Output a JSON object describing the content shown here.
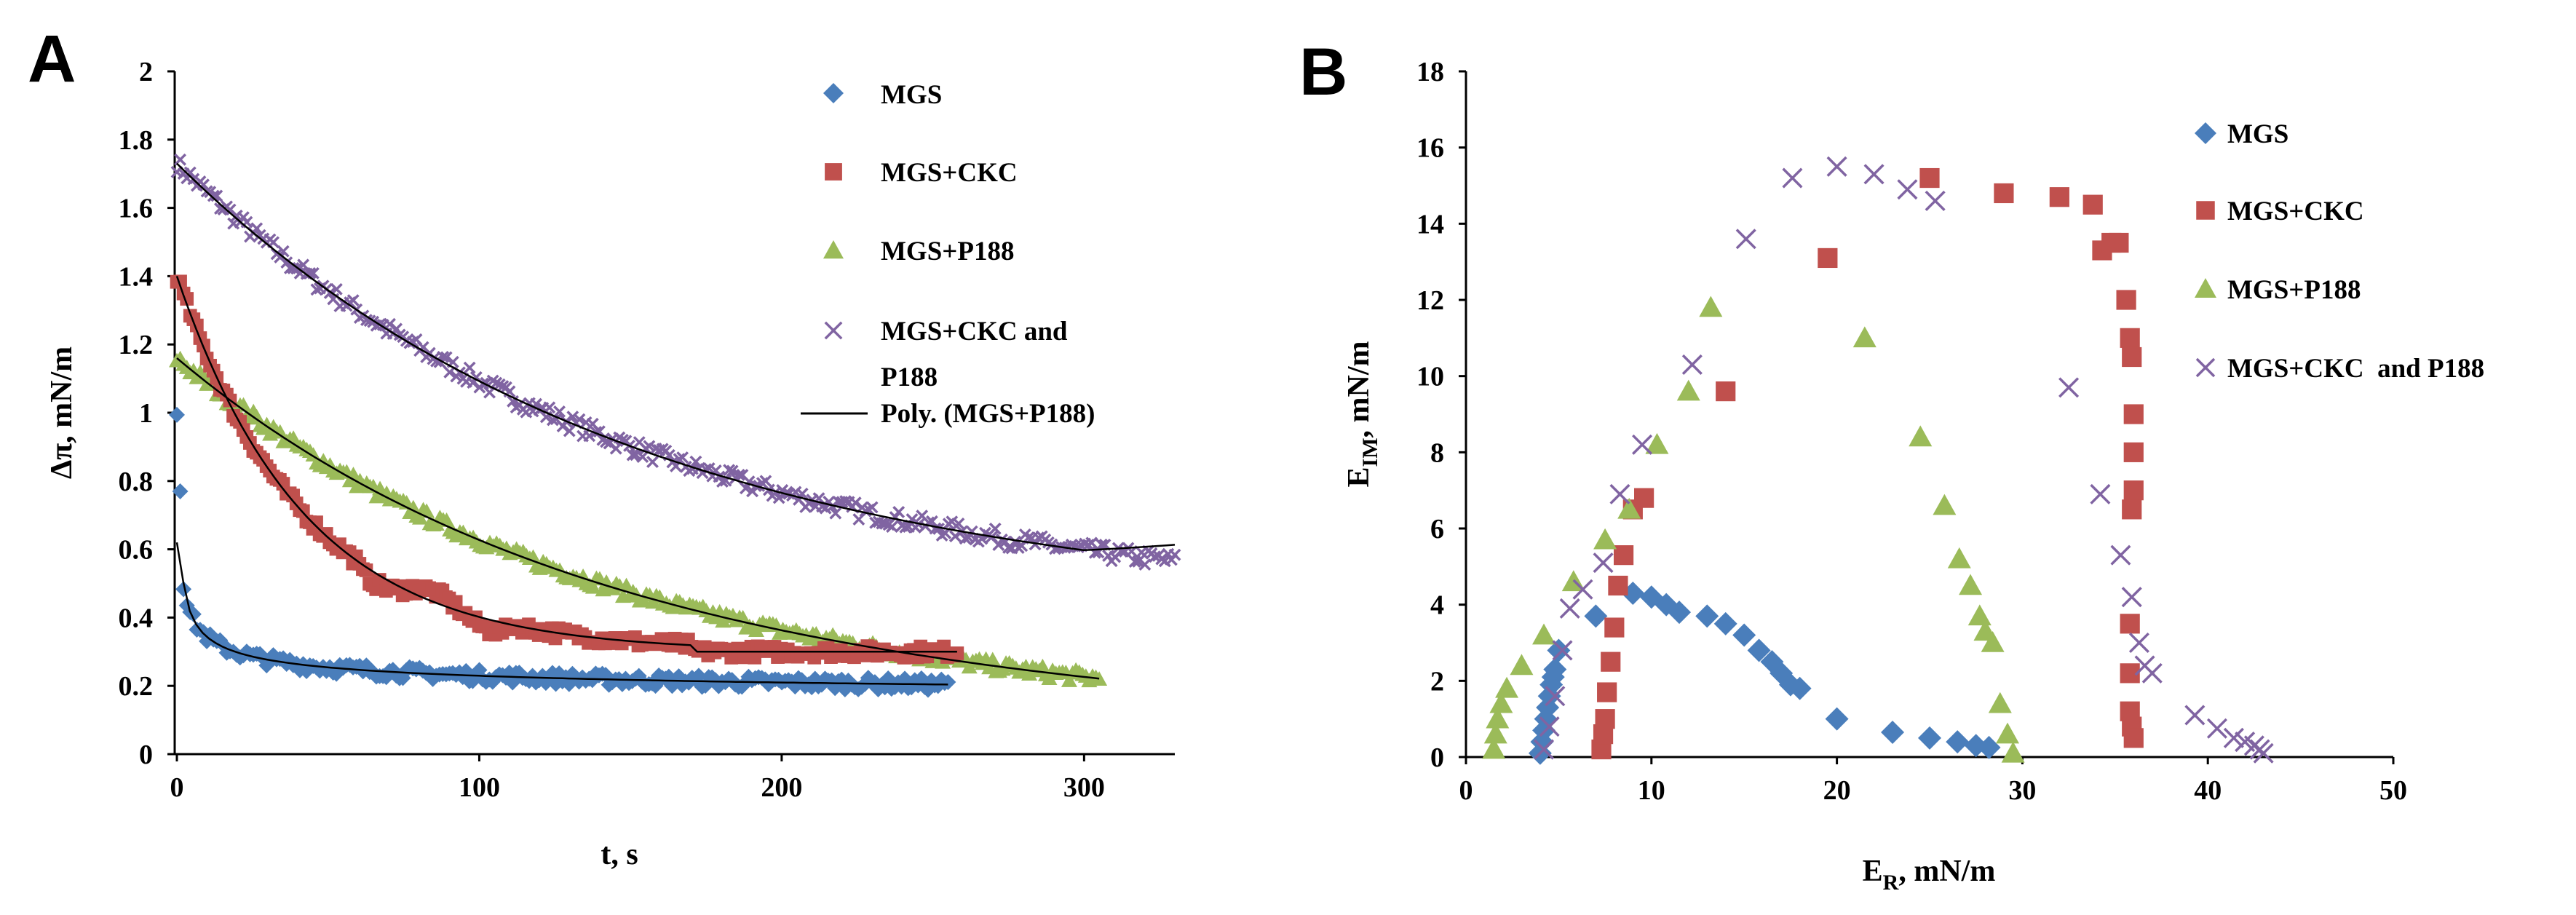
{
  "chart_data": [
    {
      "panel_label": "A",
      "type": "scatter",
      "xlabel": "t, s",
      "ylabel": "Δπ, mN/m",
      "xlim": [
        0,
        330
      ],
      "ylim": [
        0,
        2
      ],
      "xticks": [
        "0",
        "100",
        "200",
        "300"
      ],
      "yticks": [
        "0",
        "0.2",
        "0.4",
        "0.6",
        "0.8",
        "1",
        "1.2",
        "1.4",
        "1.6",
        "1.8",
        "2"
      ],
      "grid": false,
      "legend_position": "top-right",
      "series": [
        {
          "name": "MGS",
          "marker": "diamond",
          "color": "#4a7ebb",
          "model": {
            "form": "log",
            "y0": 0.62,
            "y_end": 0.17,
            "t_end": 255
          }
        },
        {
          "name": "MGS+CKC",
          "marker": "square",
          "color": "#c0504d",
          "model": {
            "form": "exp",
            "y0": 1.4,
            "y_end": 0.3,
            "tau": 42,
            "t_end": 258
          }
        },
        {
          "name": "MGS+P188",
          "marker": "triangle",
          "color": "#9bbb59",
          "model": {
            "form": "linear-exp",
            "y0": 1.16,
            "y_end": 0.18,
            "tau": 130,
            "t_end": 305
          }
        },
        {
          "name": "MGS+CKC and P188",
          "marker": "x",
          "color": "#8064a2",
          "model": {
            "form": "exp",
            "y0": 1.73,
            "y_end": 0.42,
            "tau": 150,
            "t_end": 330
          }
        }
      ],
      "trendlines": [
        {
          "name": "Poly. (MGS+P188)",
          "color": "#000000"
        }
      ],
      "legend_entries": [
        "MGS",
        "MGS+CKC",
        "MGS+P188",
        "MGS+CKC and",
        "P188",
        "Poly. (MGS+P188)"
      ]
    },
    {
      "panel_label": "B",
      "type": "scatter",
      "xlabel": "E",
      "xlabel_sub": "R",
      "xlabel_tail": ", mN/m",
      "ylabel": "E",
      "ylabel_sub": "IM",
      "ylabel_tail": ", mN/m",
      "xlim": [
        0,
        50
      ],
      "ylim": [
        0,
        18
      ],
      "xticks": [
        "0",
        "10",
        "20",
        "30",
        "40",
        "50"
      ],
      "yticks": [
        "0",
        "2",
        "4",
        "6",
        "8",
        "10",
        "12",
        "14",
        "16",
        "18"
      ],
      "grid": false,
      "legend_position": "top-right",
      "series": [
        {
          "name": "MGS",
          "marker": "diamond",
          "color": "#4a7ebb",
          "x": [
            4.0,
            4.1,
            4.2,
            4.3,
            4.4,
            4.5,
            4.6,
            4.7,
            4.8,
            5.0,
            7.0,
            9.0,
            10.0,
            10.8,
            11.5,
            13.0,
            14.0,
            15.0,
            15.8,
            16.5,
            17.0,
            17.5,
            18.0,
            20.0,
            23.0,
            25.0,
            26.5,
            27.5,
            28.2
          ],
          "y": [
            0.1,
            0.4,
            0.7,
            1.0,
            1.3,
            1.6,
            1.9,
            2.1,
            2.3,
            2.8,
            3.7,
            4.3,
            4.2,
            4.0,
            3.8,
            3.7,
            3.5,
            3.2,
            2.8,
            2.5,
            2.2,
            1.9,
            1.8,
            1.0,
            0.65,
            0.5,
            0.4,
            0.3,
            0.25
          ]
        },
        {
          "name": "MGS+CKC",
          "marker": "square",
          "color": "#c0504d",
          "x": [
            7.3,
            7.4,
            7.5,
            7.6,
            7.8,
            8.0,
            8.2,
            8.5,
            9.0,
            9.6,
            14.0,
            19.5,
            25.0,
            29.0,
            32.0,
            33.8,
            34.3,
            34.8,
            35.2,
            35.6,
            35.8,
            35.9,
            36.0,
            36.0,
            36.0,
            35.9,
            35.8,
            35.8,
            35.8,
            35.9,
            36.0
          ],
          "y": [
            0.2,
            0.6,
            1.0,
            1.7,
            2.5,
            3.4,
            4.5,
            5.3,
            6.5,
            6.8,
            9.6,
            13.1,
            15.2,
            14.8,
            14.7,
            14.5,
            13.3,
            13.5,
            13.5,
            12.0,
            11.0,
            10.5,
            9.0,
            8.0,
            7.0,
            6.5,
            3.5,
            2.2,
            1.2,
            0.8,
            0.5
          ]
        },
        {
          "name": "MGS+P188",
          "marker": "triangle",
          "color": "#9bbb59",
          "x": [
            1.5,
            1.6,
            1.7,
            1.9,
            2.2,
            3.0,
            4.2,
            5.8,
            7.5,
            8.8,
            10.3,
            12.0,
            13.2,
            21.5,
            24.5,
            25.8,
            26.6,
            27.2,
            27.7,
            28.0,
            28.4,
            28.8,
            29.2,
            29.5
          ],
          "y": [
            0.2,
            0.6,
            1.0,
            1.4,
            1.8,
            2.4,
            3.2,
            4.6,
            5.7,
            6.5,
            8.2,
            9.6,
            11.8,
            11.0,
            8.4,
            6.6,
            5.2,
            4.5,
            3.7,
            3.3,
            3.0,
            1.4,
            0.6,
            0.1
          ]
        },
        {
          "name": "MGS+CKC and P188",
          "marker": "x",
          "color": "#8064a2",
          "x": [
            4.2,
            4.5,
            4.8,
            5.2,
            5.6,
            6.3,
            7.4,
            8.3,
            9.5,
            12.2,
            15.1,
            17.6,
            20.0,
            22.0,
            23.8,
            25.3,
            32.5,
            34.2,
            35.3,
            35.9,
            36.3,
            36.6,
            37.0,
            39.3,
            40.5,
            41.4,
            42.0,
            42.5,
            42.8,
            43.0
          ],
          "y": [
            0.2,
            0.8,
            1.6,
            2.8,
            3.9,
            4.4,
            5.1,
            6.9,
            8.2,
            10.3,
            13.6,
            15.2,
            15.5,
            15.3,
            14.9,
            14.6,
            9.7,
            6.9,
            5.3,
            4.2,
            3.0,
            2.4,
            2.2,
            1.1,
            0.75,
            0.5,
            0.4,
            0.3,
            0.2,
            0.1
          ]
        }
      ],
      "legend_entries": [
        "MGS",
        "MGS+CKC",
        "MGS+P188",
        "MGS+CKC  and P188"
      ]
    }
  ]
}
